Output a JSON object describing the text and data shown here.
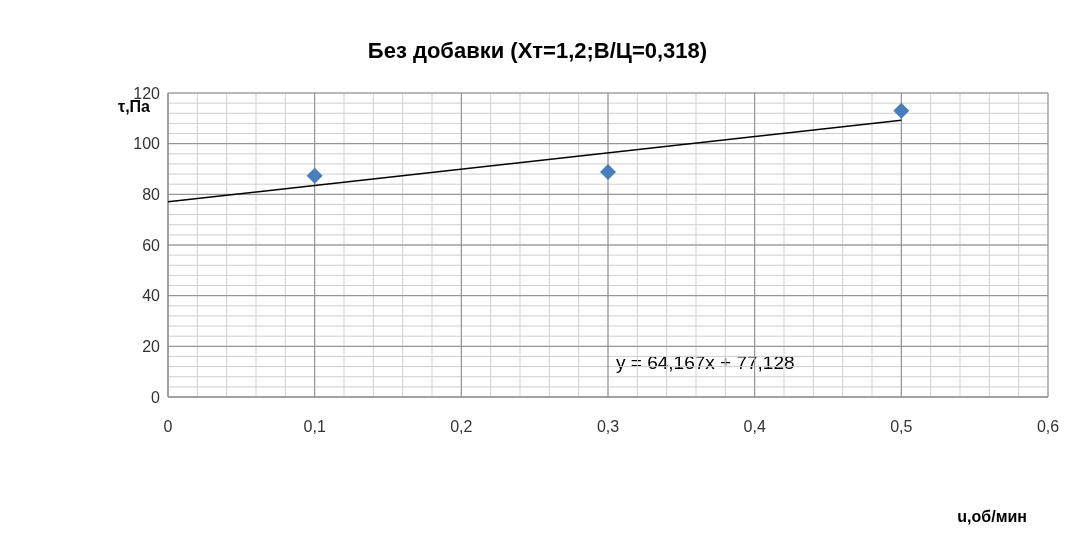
{
  "chart_data": {
    "type": "scatter",
    "title": "Без добавки (Xт=1,2;В/Ц=0,318)",
    "xlabel": "u,об/мин",
    "ylabel": "τ,Па",
    "x": [
      0.1,
      0.3,
      0.5
    ],
    "series": [
      {
        "color": "#4a7ebb",
        "marker": "diamond",
        "values": [
          87.3,
          88.8,
          113.0
        ]
      },
      {
        "type": "line",
        "color": "#000000",
        "marker": "none",
        "x": [
          0,
          0.5
        ],
        "values": [
          77.1,
          109.2
        ]
      }
    ],
    "xlim": [
      0,
      0.6
    ],
    "xticks": [
      {
        "value": 0,
        "label": "0"
      },
      {
        "value": 0.1,
        "label": "0,1"
      },
      {
        "value": 0.2,
        "label": "0,2"
      },
      {
        "value": 0.3,
        "label": "0,3"
      },
      {
        "value": 0.4,
        "label": "0,4"
      },
      {
        "value": 0.5,
        "label": "0,5"
      },
      {
        "value": 0.6,
        "label": "0,6"
      }
    ],
    "ylim": [
      0,
      120
    ],
    "yticks": [
      0,
      20,
      40,
      60,
      80,
      100,
      120
    ],
    "grid": true,
    "annotations": [
      "y = 64,167x + 77,128"
    ]
  }
}
